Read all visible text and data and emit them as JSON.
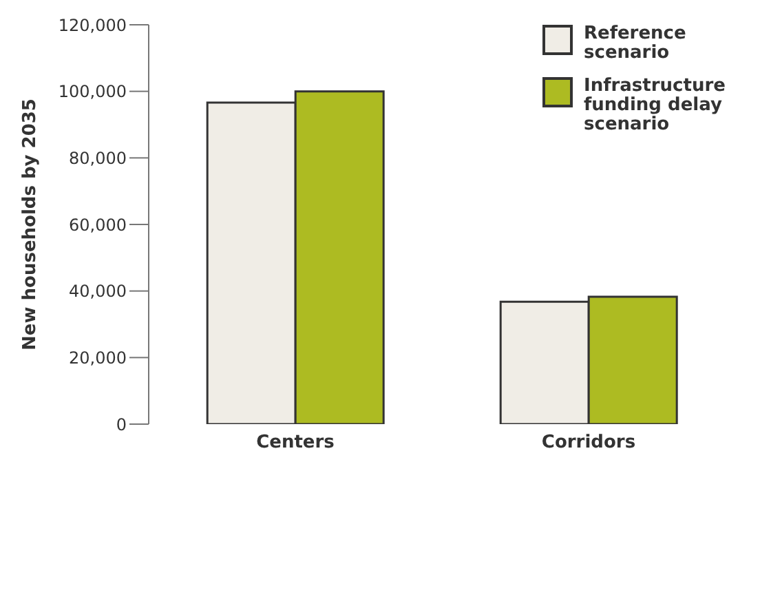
{
  "chart_data": {
    "type": "bar",
    "ylabel": "New households by 2035",
    "categories": [
      "Centers",
      "Corridors"
    ],
    "series": [
      {
        "name": "Reference scenario",
        "color": "#f0ede6",
        "values": [
          96600,
          36800
        ]
      },
      {
        "name": "Infrastructure funding delay scenario",
        "color": "#adbb22",
        "values": [
          100000,
          38300
        ]
      }
    ],
    "ylim": [
      0,
      120000
    ],
    "yticks": [
      {
        "value": 0,
        "label": "0"
      },
      {
        "value": 20000,
        "label": "20,000"
      },
      {
        "value": 40000,
        "label": "40,000"
      },
      {
        "value": 60000,
        "label": "60,000"
      },
      {
        "value": 80000,
        "label": "80,000"
      },
      {
        "value": 100000,
        "label": "100,000"
      },
      {
        "value": 120000,
        "label": "120,000"
      }
    ],
    "grid": false,
    "legend": "top right"
  }
}
